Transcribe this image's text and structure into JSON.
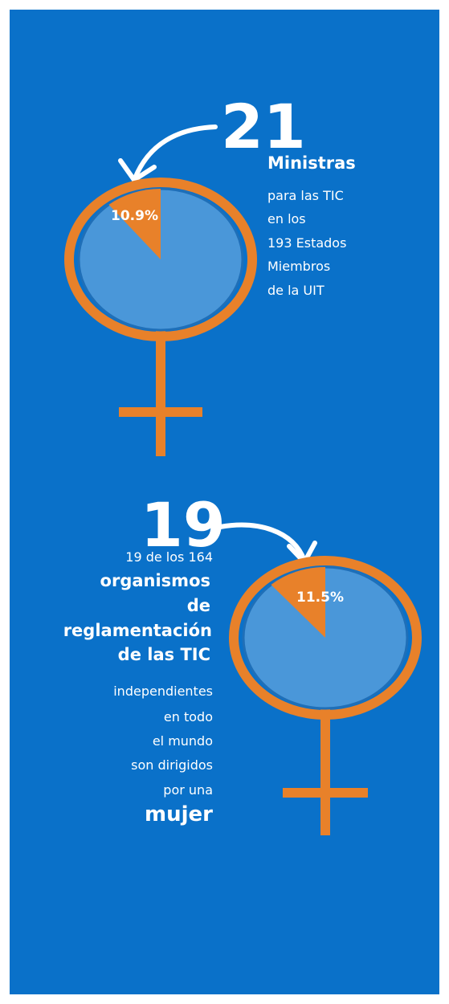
{
  "sections": [
    {
      "number": "21",
      "heading": "Ministras",
      "lines": [
        "para las TIC",
        "en los",
        "193 Estados",
        "Miembros",
        "de la UIT"
      ],
      "pie": {
        "value": 10.9,
        "value_label": "10.9%"
      }
    },
    {
      "number": "19",
      "intro": "19 de los 164",
      "heading_lines": [
        "organismos",
        "de",
        "reglamentación",
        "de las TIC"
      ],
      "lines": [
        "independientes",
        "en todo",
        "el mundo",
        "son dirigidos",
        "por una"
      ],
      "closing": "mujer",
      "pie": {
        "value": 11.5,
        "value_label": "11.5%"
      }
    }
  ]
}
